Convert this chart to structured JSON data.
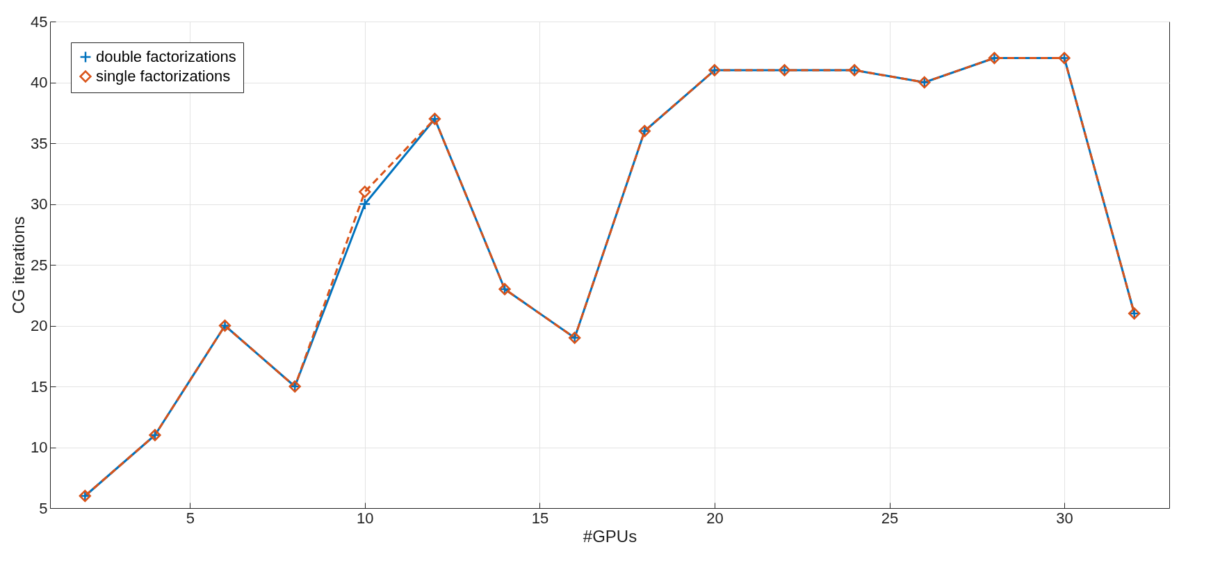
{
  "chart_data": {
    "type": "line",
    "xlabel": "#GPUs",
    "ylabel": "CG iterations",
    "x": [
      2,
      4,
      6,
      8,
      10,
      12,
      14,
      16,
      18,
      20,
      22,
      24,
      26,
      28,
      30,
      32
    ],
    "series": [
      {
        "name": "double factorizations",
        "color": "#0072bd",
        "marker": "cross",
        "line_style": "solid",
        "values": [
          6,
          11,
          20,
          15,
          30,
          37,
          23,
          19,
          36,
          41,
          41,
          41,
          40,
          42,
          42,
          21
        ]
      },
      {
        "name": "single factorizations",
        "color": "#d95319",
        "marker": "diamond",
        "line_style": "dashed",
        "values": [
          6,
          11,
          20,
          15,
          31,
          37,
          23,
          19,
          36,
          41,
          41,
          41,
          40,
          42,
          42,
          21
        ]
      }
    ],
    "xlim": [
      1,
      33
    ],
    "xticks": [
      5,
      10,
      15,
      20,
      25,
      30
    ],
    "ylim": [
      5,
      45
    ],
    "yticks": [
      5,
      10,
      15,
      20,
      25,
      30,
      35,
      40,
      45
    ],
    "grid": true,
    "legend": "top left"
  }
}
